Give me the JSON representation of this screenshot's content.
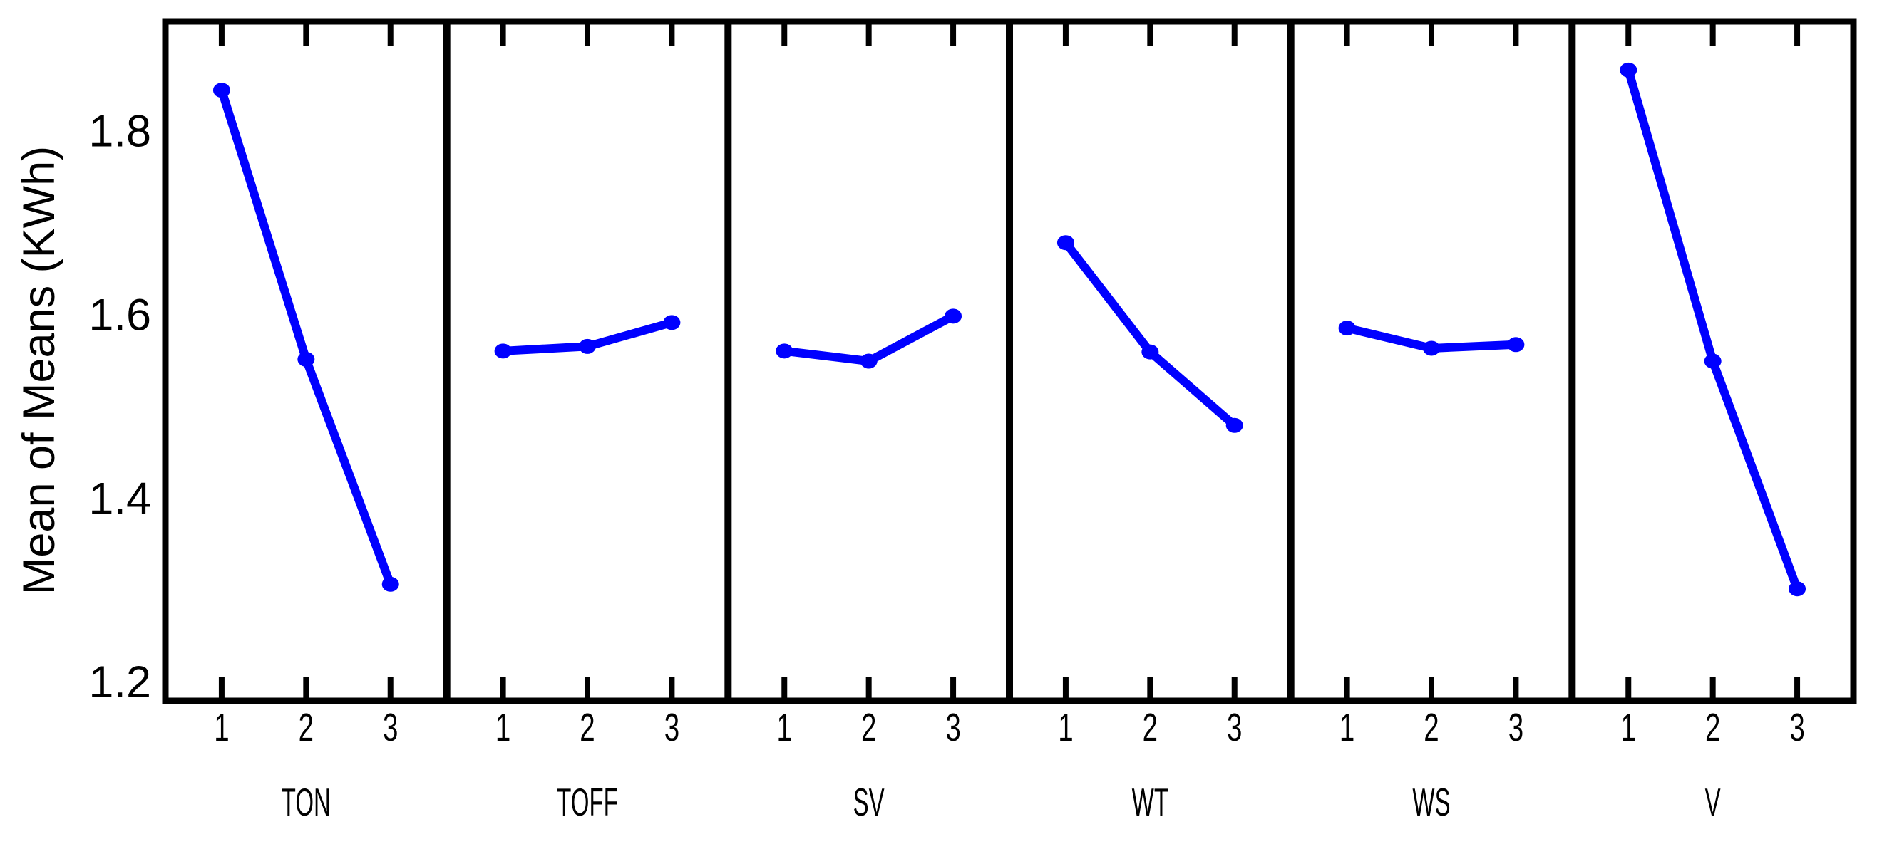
{
  "chart_data": {
    "type": "line",
    "title": "",
    "ylabel": "Mean of Means (KWh)",
    "xlabel": "",
    "ylim": [
      1.18,
      1.92
    ],
    "yticks": [
      "1.2",
      "1.4",
      "1.6",
      "1.8"
    ],
    "x_levels": [
      "1",
      "2",
      "3"
    ],
    "grid": false,
    "legend": "none",
    "layout": "6 side-by-side factor panels sharing one y axis",
    "panels": [
      {
        "factor": "TON",
        "values": [
          1.845,
          1.552,
          1.307
        ]
      },
      {
        "factor": "TOFF",
        "values": [
          1.561,
          1.566,
          1.592
        ]
      },
      {
        "factor": "SV",
        "values": [
          1.561,
          1.55,
          1.599
        ]
      },
      {
        "factor": "WT",
        "values": [
          1.679,
          1.56,
          1.48
        ]
      },
      {
        "factor": "WS",
        "values": [
          1.586,
          1.564,
          1.568
        ]
      },
      {
        "factor": "V",
        "values": [
          1.867,
          1.55,
          1.302
        ]
      }
    ],
    "colors": {
      "series": "#0000ff",
      "axis": "#000000",
      "background": "#ffffff"
    }
  }
}
